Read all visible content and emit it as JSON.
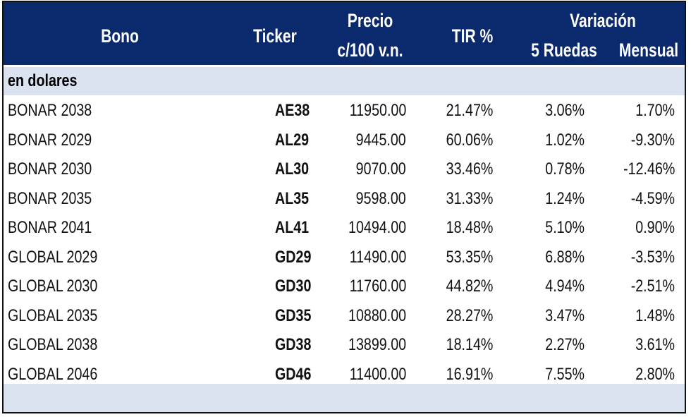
{
  "header": {
    "bono": "Bono",
    "ticker": "Ticker",
    "precio_line1": "Precio",
    "precio_line2": "c/100 v.n.",
    "tir": "TIR %",
    "variacion": "Variación",
    "ruedas": "5 Ruedas",
    "mensual": "Mensual"
  },
  "section": "en dolares",
  "rows": [
    {
      "name": "BONAR 2038",
      "ticker": "AE38",
      "price": "11950.00",
      "tir": "21.47%",
      "r5": "3.06%",
      "mensual": "1.70%"
    },
    {
      "name": "BONAR 2029",
      "ticker": "AL29",
      "price": "9445.00",
      "tir": "60.06%",
      "r5": "1.02%",
      "mensual": "-9.30%"
    },
    {
      "name": "BONAR 2030",
      "ticker": "AL30",
      "price": "9070.00",
      "tir": "33.46%",
      "r5": "0.78%",
      "mensual": "-12.46%"
    },
    {
      "name": "BONAR 2035",
      "ticker": "AL35",
      "price": "9598.00",
      "tir": "31.33%",
      "r5": "1.24%",
      "mensual": "-4.59%"
    },
    {
      "name": "BONAR 2041",
      "ticker": "AL41",
      "price": "10494.00",
      "tir": "18.48%",
      "r5": "5.10%",
      "mensual": "0.90%"
    },
    {
      "name": "GLOBAL 2029",
      "ticker": "GD29",
      "price": "11490.00",
      "tir": "53.35%",
      "r5": "6.88%",
      "mensual": "-3.53%"
    },
    {
      "name": "GLOBAL 2030",
      "ticker": "GD30",
      "price": "11760.00",
      "tir": "44.82%",
      "r5": "4.94%",
      "mensual": "-2.51%"
    },
    {
      "name": "GLOBAL 2035",
      "ticker": "GD35",
      "price": "10880.00",
      "tir": "28.27%",
      "r5": "3.47%",
      "mensual": "1.48%"
    },
    {
      "name": "GLOBAL 2038",
      "ticker": "GD38",
      "price": "13899.00",
      "tir": "18.14%",
      "r5": "2.27%",
      "mensual": "3.61%"
    },
    {
      "name": "GLOBAL 2046",
      "ticker": "GD46",
      "price": "11400.00",
      "tir": "16.91%",
      "r5": "7.55%",
      "mensual": "2.80%"
    }
  ],
  "colors": {
    "header_bg": "#0b2a6e",
    "band_bg": "#dbe3f1"
  }
}
